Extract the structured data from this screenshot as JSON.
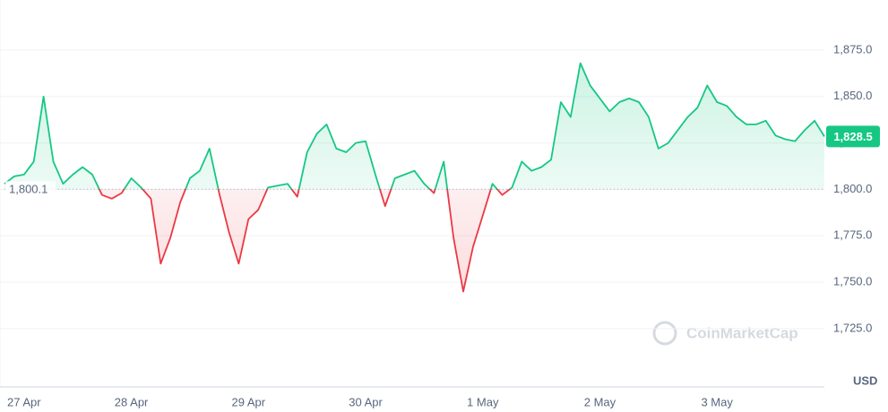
{
  "chart_data": {
    "type": "line",
    "categories": [
      null,
      null,
      "27 Apr",
      null,
      null,
      null,
      null,
      null,
      null,
      null,
      null,
      null,
      null,
      "28 Apr",
      null,
      null,
      null,
      null,
      null,
      null,
      null,
      null,
      null,
      null,
      null,
      "29 Apr",
      null,
      null,
      null,
      null,
      null,
      null,
      null,
      null,
      null,
      null,
      null,
      "30 Apr",
      null,
      null,
      null,
      null,
      null,
      null,
      null,
      null,
      null,
      null,
      null,
      "1 May",
      null,
      null,
      null,
      null,
      null,
      null,
      null,
      null,
      null,
      null,
      null,
      "2 May",
      null,
      null,
      null,
      null,
      null,
      null,
      null,
      null,
      null,
      null,
      null,
      "3 May",
      null,
      null,
      null,
      null,
      null,
      null,
      null,
      null,
      null,
      null,
      null
    ],
    "values": [
      1803,
      1807,
      1808,
      1815,
      1850,
      1815,
      1803,
      1808,
      1812,
      1808,
      1797,
      1795,
      1798,
      1806,
      1801,
      1795,
      1760,
      1774,
      1793,
      1806,
      1810,
      1822,
      1798,
      1777,
      1760,
      1784,
      1789,
      1801,
      1802,
      1803,
      1796,
      1820,
      1830,
      1835,
      1822,
      1820,
      1825,
      1826,
      1808,
      1791,
      1806,
      1808,
      1810,
      1803,
      1798,
      1815,
      1774,
      1745,
      1769,
      1786,
      1803,
      1797,
      1801,
      1815,
      1810,
      1812,
      1816,
      1847,
      1839,
      1868,
      1856,
      1849,
      1842,
      1847,
      1849,
      1847,
      1839,
      1822,
      1825,
      1832,
      1839,
      1844,
      1856,
      1847,
      1845,
      1839,
      1835,
      1835,
      1837,
      1829,
      1827,
      1826,
      1832,
      1837,
      1828.5
    ],
    "baseline": {
      "value": 1800.1,
      "label": "1,800.1"
    },
    "last_value": {
      "value": 1828.5,
      "label": "1,828.5"
    },
    "colors": {
      "up": "#16c784",
      "down": "#ea3943"
    },
    "ylim": [
      1693.6,
      1899.6
    ],
    "yticks": [
      {
        "value": 1725,
        "label": "1,725.0"
      },
      {
        "value": 1750,
        "label": "1,750.0"
      },
      {
        "value": 1775,
        "label": "1,775.0"
      },
      {
        "value": 1800,
        "label": "1,800.0"
      },
      {
        "value": 1825,
        "label": "1,825.0"
      },
      {
        "value": 1850,
        "label": "1,850.0"
      },
      {
        "value": 1875,
        "label": "1,875.0"
      }
    ],
    "grid": true,
    "axis_unit": "USD",
    "watermark": "CoinMarketCap"
  }
}
